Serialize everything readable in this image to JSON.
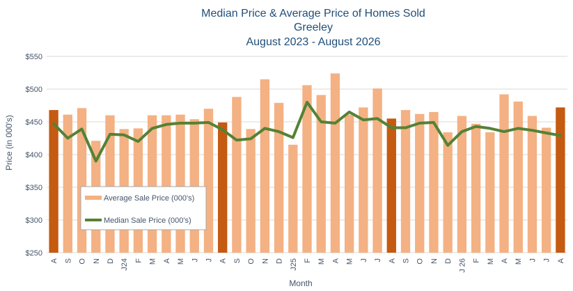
{
  "chart_data": {
    "type": "bar",
    "title_lines": [
      "Median Price & Average Price of Homes Sold",
      "Greeley",
      "August 2023 - August 2026"
    ],
    "xlabel": "Month",
    "ylabel": "Price (in 000's)",
    "ylim": [
      250,
      550
    ],
    "yticks": [
      250,
      300,
      350,
      400,
      450,
      500,
      550
    ],
    "ytick_labels": [
      "$250",
      "$300",
      "$350",
      "$400",
      "$450",
      "$500",
      "$550"
    ],
    "grid": true,
    "legend_position": "left-bottom",
    "categories": [
      "A",
      "S",
      "O",
      "N",
      "D",
      "J24",
      "F",
      "M",
      "A",
      "M",
      "J",
      "J",
      "A",
      "S",
      "O",
      "N",
      "D",
      "J25",
      "F",
      "M",
      "A",
      "M",
      "J",
      "J",
      "A",
      "S",
      "O",
      "N",
      "D",
      "J 26",
      "F",
      "M",
      "A",
      "M",
      "J",
      "J",
      "A"
    ],
    "highlight_indices": [
      0,
      12,
      24,
      36
    ],
    "colors": {
      "bar": "#f4b183",
      "bar_highlight": "#c55a11",
      "line": "#548235",
      "grid": "#d9d9d9",
      "title": "#1f4e79",
      "text": "#44546a"
    },
    "series": [
      {
        "name": "Average Sale Price (000's)",
        "kind": "bar",
        "values": [
          468,
          461,
          471,
          421,
          460,
          439,
          440,
          460,
          460,
          461,
          454,
          470,
          449,
          488,
          439,
          515,
          479,
          415,
          506,
          491,
          524,
          461,
          472,
          501,
          455,
          468,
          462,
          465,
          434,
          459,
          447,
          434,
          492,
          481,
          459,
          441,
          472
        ]
      },
      {
        "name": "Median Sale Price (000's)",
        "kind": "line",
        "values": [
          447,
          425,
          439,
          390,
          431,
          430,
          420,
          440,
          446,
          448,
          448,
          449,
          438,
          422,
          424,
          440,
          435,
          426,
          480,
          450,
          448,
          465,
          453,
          455,
          441,
          441,
          448,
          449,
          414,
          435,
          443,
          440,
          435,
          440,
          437,
          433,
          429
        ]
      }
    ]
  }
}
